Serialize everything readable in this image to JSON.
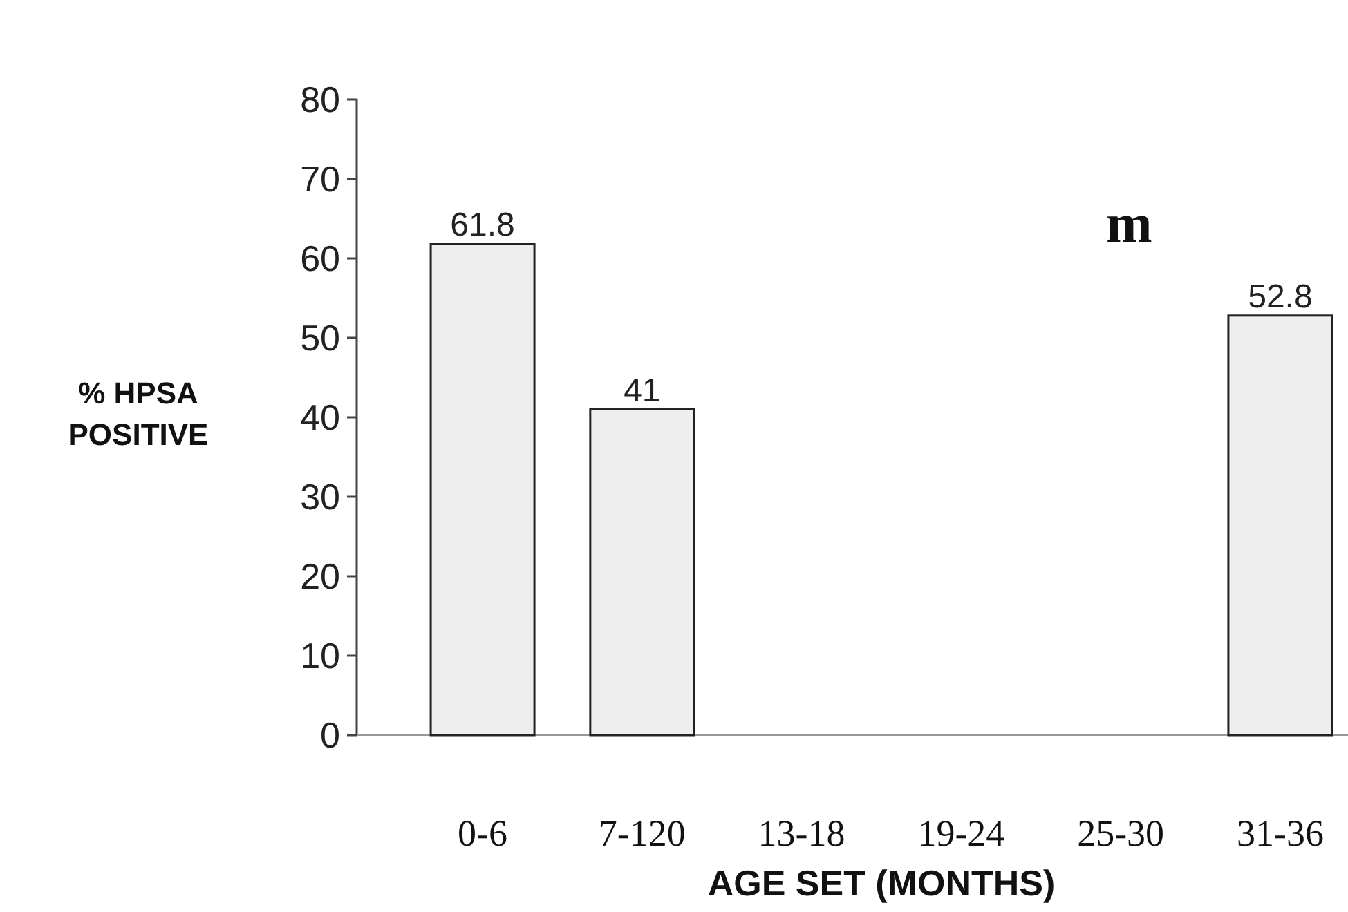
{
  "chart_data": {
    "type": "bar",
    "xlabel": "AGE SET (MONTHS)",
    "ylabel": "% HPSA POSITIVE",
    "categories": [
      "0-6",
      "7-120",
      "13-18",
      "19-24",
      "25-30",
      "31-36"
    ],
    "values": [
      61.8,
      41,
      null,
      null,
      null,
      52.8
    ],
    "value_labels": [
      "61.8",
      "41",
      null,
      null,
      null,
      "52.8"
    ],
    "color": "#eeeeee",
    "ylim": [
      0,
      80
    ],
    "yticks": [
      0,
      10,
      20,
      30,
      40,
      50,
      60,
      70,
      80
    ],
    "annotations": [
      "m"
    ]
  }
}
